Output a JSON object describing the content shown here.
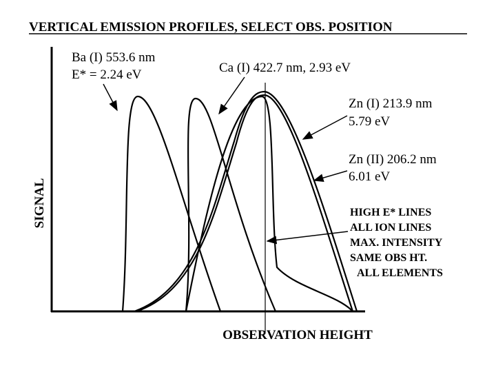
{
  "title": "VERTICAL EMISSION PROFILES, SELECT OBS. POSITION",
  "y_axis_label": "SIGNAL",
  "x_axis_label": "OBSERVATION HEIGHT",
  "annotations": {
    "ba": [
      "Ba (I) 553.6 nm",
      "E* = 2.24 eV"
    ],
    "ca": [
      "Ca (I) 422.7 nm, 2.93 eV"
    ],
    "zn1": [
      "Zn (I) 213.9 nm",
      "5.79 eV"
    ],
    "zn2": [
      "Zn (II) 206.2 nm",
      "6.01 eV"
    ],
    "note": [
      "HIGH E* LINES",
      "ALL ION LINES",
      "MAX. INTENSITY",
      "SAME OBS HT.",
      "ALL ELEMENTS"
    ]
  }
}
